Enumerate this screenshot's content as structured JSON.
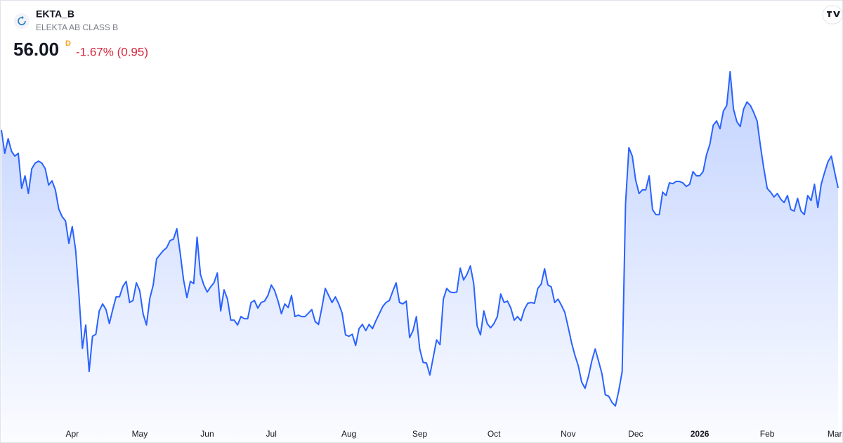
{
  "header": {
    "symbol": "EKTA_B",
    "name": "ELEKTA AB CLASS B",
    "price": "56.00",
    "price_flag": "D",
    "change": "-1.67% (0.95)"
  },
  "chart_data": {
    "type": "area",
    "color": "#2962ff",
    "values": [
      59.69,
      58.21,
      59.15,
      58.34,
      58.03,
      58.21,
      55.96,
      56.77,
      55.64,
      57.22,
      57.58,
      57.71,
      57.58,
      57.22,
      56.18,
      56.45,
      55.87,
      54.65,
      54.16,
      53.89,
      52.45,
      53.53,
      52.04,
      49.12,
      45.74,
      47.23,
      44.26,
      46.51,
      46.64,
      48.13,
      48.58,
      48.22,
      47.32,
      48.22,
      49.03,
      49.03,
      49.7,
      50.02,
      48.67,
      48.8,
      49.93,
      49.43,
      47.95,
      47.23,
      48.94,
      49.79,
      51.46,
      51.73,
      51.99,
      52.18,
      52.63,
      52.72,
      53.39,
      51.82,
      50.11,
      48.98,
      50.02,
      49.88,
      52.85,
      50.47,
      49.79,
      49.34,
      49.66,
      49.93,
      50.56,
      48.13,
      49.48,
      48.89,
      47.54,
      47.54,
      47.23,
      47.77,
      47.63,
      47.63,
      48.67,
      48.8,
      48.31,
      48.67,
      48.76,
      49.12,
      49.79,
      49.43,
      48.76,
      47.95,
      48.58,
      48.35,
      49.12,
      47.77,
      47.86,
      47.77,
      47.77,
      47.99,
      48.22,
      47.45,
      47.27,
      48.35,
      49.57,
      49.12,
      48.67,
      49.03,
      48.58,
      47.99,
      46.6,
      46.51,
      46.64,
      45.92,
      47.0,
      47.27,
      46.87,
      47.27,
      47.0,
      47.5,
      47.95,
      48.4,
      48.67,
      48.8,
      49.39,
      49.93,
      48.67,
      48.58,
      48.76,
      46.42,
      46.87,
      47.77,
      45.7,
      44.84,
      44.8,
      44.03,
      45.16,
      46.28,
      45.97,
      48.89,
      49.57,
      49.34,
      49.3,
      49.34,
      50.87,
      50.11,
      50.47,
      51.01,
      49.88,
      47.18,
      46.6,
      48.13,
      47.32,
      47.05,
      47.32,
      47.77,
      49.21,
      48.67,
      48.76,
      48.31,
      47.54,
      47.77,
      47.5,
      48.22,
      48.62,
      48.67,
      48.62,
      49.57,
      49.84,
      50.83,
      49.79,
      49.66,
      48.67,
      48.89,
      48.49,
      48.04,
      47.09,
      46.1,
      45.29,
      44.62,
      43.58,
      43.18,
      43.94,
      44.93,
      45.7,
      44.93,
      44.12,
      42.77,
      42.68,
      42.28,
      42.05,
      43.04,
      44.26,
      54.97,
      58.57,
      58.03,
      56.5,
      55.64,
      55.87,
      55.87,
      56.77,
      54.61,
      54.29,
      54.29,
      55.73,
      55.51,
      56.32,
      56.27,
      56.41,
      56.41,
      56.32,
      56.09,
      56.23,
      57.04,
      56.77,
      56.77,
      57.04,
      58.12,
      58.79,
      60.01,
      60.28,
      59.78,
      60.91,
      61.27,
      63.43,
      61.04,
      60.23,
      59.92,
      61.04,
      61.49,
      61.27,
      60.82,
      60.28,
      58.66,
      57.22,
      55.96,
      55.73,
      55.42,
      55.64,
      55.28,
      55.06,
      55.51,
      54.61,
      54.52,
      55.33,
      54.52,
      54.29,
      55.51,
      55.19,
      56.23,
      54.74,
      56.23,
      56.99,
      57.67,
      58.03,
      56.99,
      56.0
    ],
    "xlim": [
      0,
      248
    ],
    "xticks": [
      {
        "value": 21,
        "label": "Apr"
      },
      {
        "value": 41,
        "label": "May"
      },
      {
        "value": 61,
        "label": "Jun"
      },
      {
        "value": 80,
        "label": "Jul"
      },
      {
        "value": 103,
        "label": "Aug"
      },
      {
        "value": 124,
        "label": "Sep"
      },
      {
        "value": 146,
        "label": "Oct"
      },
      {
        "value": 168,
        "label": "Nov"
      },
      {
        "value": 188,
        "label": "Dec"
      },
      {
        "value": 207,
        "label": "2026"
      },
      {
        "value": 227,
        "label": "Feb"
      },
      {
        "value": 247,
        "label": "Mar"
      }
    ],
    "ylim": [
      40,
      65
    ]
  }
}
